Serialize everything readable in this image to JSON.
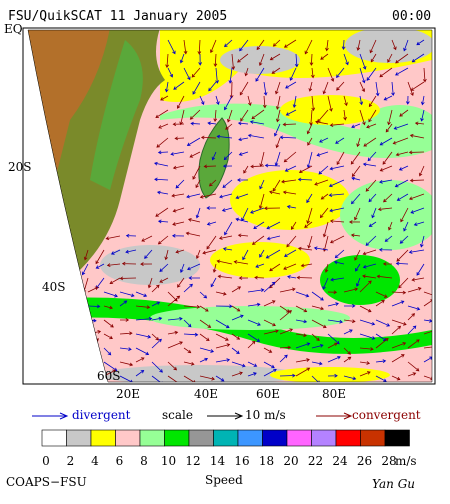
{
  "header": {
    "title": "FSU/QuikSCAT  11 January 2005",
    "time": "00:00"
  },
  "map": {
    "lat_labels": [
      "EQ",
      "20S",
      "40S",
      "60S"
    ],
    "lon_labels": [
      "20E",
      "40E",
      "60E",
      "80E"
    ]
  },
  "legend": {
    "divergent": "divergent",
    "scale": "scale",
    "scale_value": "10 m/s",
    "convergent": "convergent"
  },
  "colorbar": {
    "title": "Speed",
    "unit": "m/s",
    "labels": [
      "0",
      "2",
      "4",
      "6",
      "8",
      "10",
      "12",
      "14",
      "16",
      "18",
      "20",
      "22",
      "24",
      "26",
      "28"
    ],
    "colors": [
      "#ffffff",
      "#c8c8c8",
      "#ffff00",
      "#ffc8c8",
      "#96ff96",
      "#00e600",
      "#969696",
      "#00b4b4",
      "#3c96ff",
      "#0000c8",
      "#ff64ff",
      "#b482ff",
      "#ff0000",
      "#c83200",
      "#000000"
    ]
  },
  "footer": {
    "left": "COAPS−FSU",
    "right": "Yan Gu"
  }
}
